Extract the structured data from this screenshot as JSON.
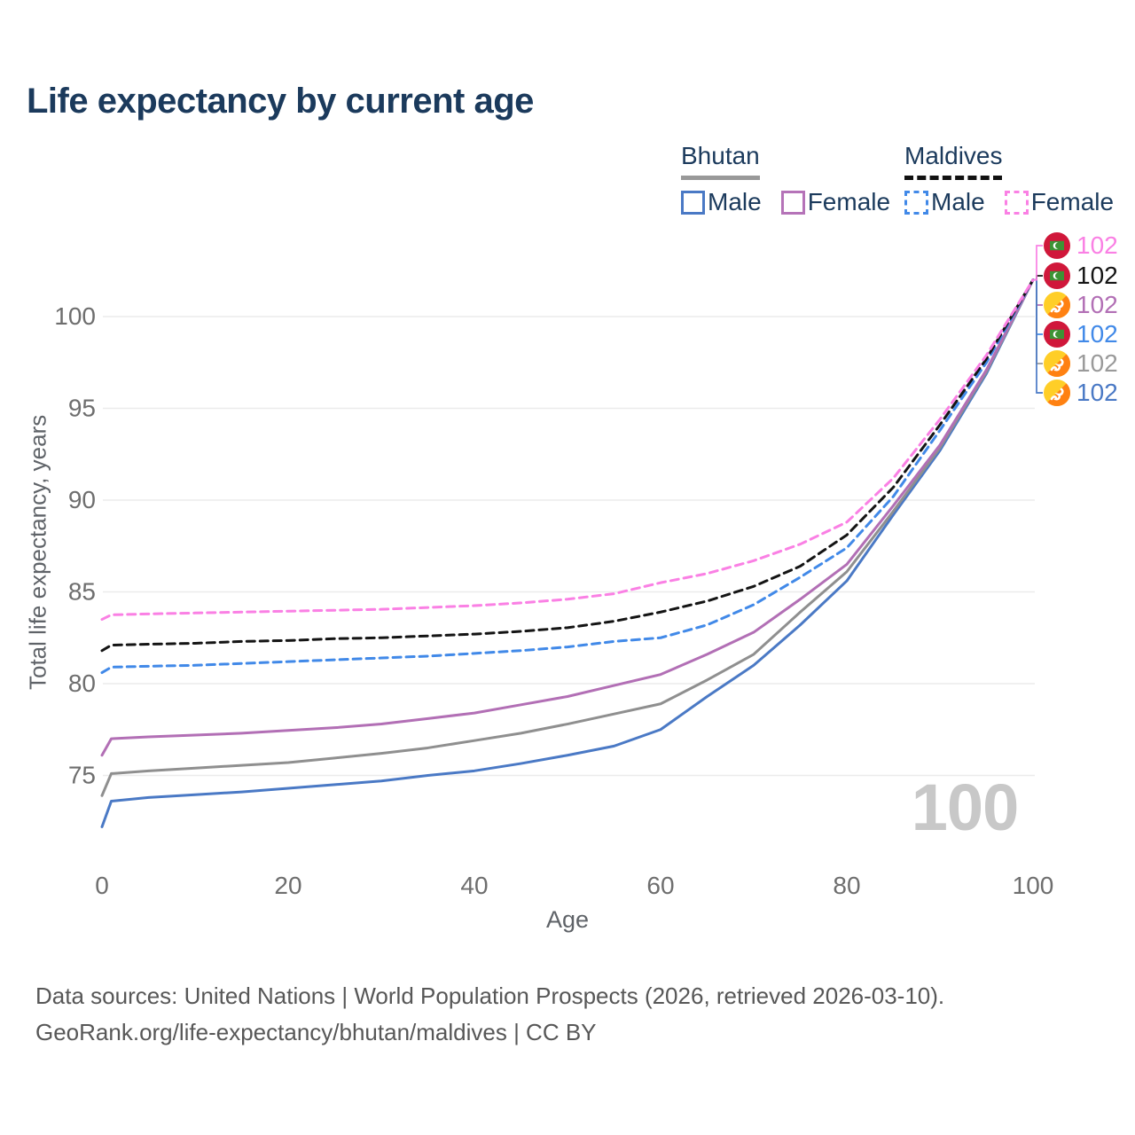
{
  "title": "Life expectancy by current age",
  "legend": {
    "groups": [
      {
        "name": "Bhutan",
        "line_style": "solid",
        "swatch_color": "#999999",
        "items": [
          {
            "label": "Male",
            "color": "#4a79c5"
          },
          {
            "label": "Female",
            "color": "#b573b8"
          }
        ]
      },
      {
        "name": "Maldives",
        "line_style": "dashed",
        "swatch_color": "#111111",
        "items": [
          {
            "label": "Male",
            "color": "#4189e8"
          },
          {
            "label": "Female",
            "color": "#fa80e4"
          }
        ]
      }
    ]
  },
  "watermark": "100",
  "axes": {
    "x_title": "Age",
    "y_title": "Total life expectancy, years",
    "x_ticks": [
      0,
      20,
      40,
      60,
      80,
      100
    ],
    "y_ticks": [
      75,
      80,
      85,
      90,
      95,
      100
    ],
    "x_range": [
      0,
      100
    ],
    "y_range": [
      72,
      103
    ]
  },
  "end_labels": [
    {
      "value": "102",
      "flag": "maldives",
      "color": "#fa80e4"
    },
    {
      "value": "102",
      "flag": "maldives",
      "color": "#141414"
    },
    {
      "value": "102",
      "flag": "bhutan",
      "color": "#b26fb5"
    },
    {
      "value": "102",
      "flag": "maldives",
      "color": "#4189e8"
    },
    {
      "value": "102",
      "flag": "bhutan",
      "color": "#9a9a9a"
    },
    {
      "value": "102",
      "flag": "bhutan",
      "color": "#4a79c5"
    }
  ],
  "footer": {
    "line1": "Data sources: United Nations | World Population Prospects (2026, retrieved 2026-03-10).",
    "line2": "GeoRank.org/life-expectancy/bhutan/maldives | CC BY"
  },
  "chart_data": {
    "type": "line",
    "title": "Life expectancy by current age",
    "xlabel": "Age",
    "ylabel": "Total life expectancy, years",
    "xlim": [
      0,
      100
    ],
    "ylim": [
      72,
      103
    ],
    "grid": true,
    "legend_position": "top-right",
    "x": [
      0,
      1,
      5,
      10,
      15,
      20,
      25,
      30,
      35,
      40,
      45,
      50,
      55,
      60,
      65,
      70,
      75,
      80,
      85,
      90,
      95,
      100
    ],
    "series": [
      {
        "name": "Bhutan Male",
        "color": "#4a79c5",
        "dash": false,
        "values": [
          72.2,
          73.6,
          73.8,
          73.95,
          74.1,
          74.3,
          74.5,
          74.7,
          75.0,
          75.25,
          75.65,
          76.1,
          76.6,
          77.5,
          79.3,
          81.0,
          83.2,
          85.6,
          89.2,
          92.7,
          96.9,
          102
        ]
      },
      {
        "name": "Bhutan",
        "color": "#8f8f8f",
        "dash": false,
        "values": [
          73.9,
          75.1,
          75.25,
          75.4,
          75.55,
          75.7,
          75.95,
          76.2,
          76.5,
          76.9,
          77.3,
          77.8,
          78.35,
          78.9,
          80.2,
          81.6,
          83.9,
          86.1,
          89.4,
          92.85,
          97.0,
          102
        ]
      },
      {
        "name": "Bhutan Female",
        "color": "#b26fb5",
        "dash": false,
        "values": [
          76.1,
          77.0,
          77.1,
          77.2,
          77.3,
          77.45,
          77.6,
          77.8,
          78.1,
          78.4,
          78.85,
          79.3,
          79.9,
          80.5,
          81.6,
          82.8,
          84.6,
          86.5,
          89.7,
          93.0,
          97.1,
          102
        ]
      },
      {
        "name": "Maldives Male",
        "color": "#4189e8",
        "dash": true,
        "values": [
          80.6,
          80.9,
          80.95,
          81.0,
          81.1,
          81.2,
          81.3,
          81.4,
          81.5,
          81.65,
          81.8,
          82.0,
          82.3,
          82.5,
          83.2,
          84.3,
          85.8,
          87.4,
          90.2,
          93.8,
          97.5,
          102
        ]
      },
      {
        "name": "Maldives",
        "color": "#141414",
        "dash": true,
        "values": [
          81.8,
          82.1,
          82.15,
          82.2,
          82.3,
          82.35,
          82.45,
          82.5,
          82.6,
          82.7,
          82.85,
          83.05,
          83.4,
          83.9,
          84.5,
          85.3,
          86.4,
          88.1,
          90.7,
          94.1,
          97.7,
          102
        ]
      },
      {
        "name": "Maldives Female",
        "color": "#fa80e4",
        "dash": true,
        "values": [
          83.5,
          83.75,
          83.8,
          83.85,
          83.9,
          83.95,
          84.0,
          84.05,
          84.15,
          84.25,
          84.4,
          84.6,
          84.9,
          85.5,
          86.0,
          86.7,
          87.6,
          88.8,
          91.2,
          94.4,
          97.9,
          102
        ]
      }
    ]
  }
}
